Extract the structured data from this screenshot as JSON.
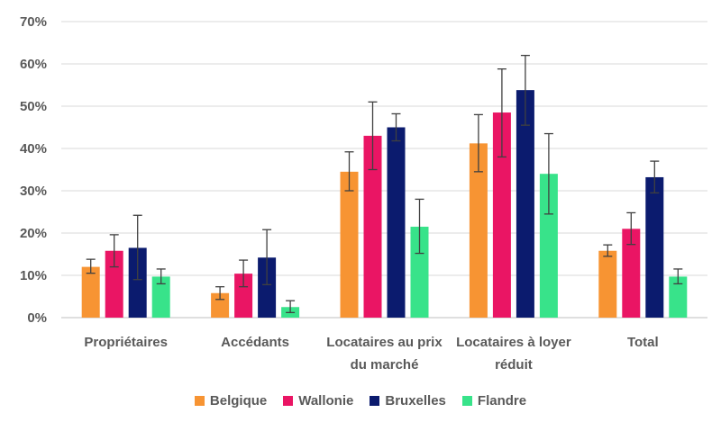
{
  "chart_data": {
    "type": "bar",
    "categories": [
      [
        "Propriétaires"
      ],
      [
        "Accédants"
      ],
      [
        "Locataires au prix",
        "du marché"
      ],
      [
        "Locataires à loyer",
        "réduit"
      ],
      [
        "Total"
      ]
    ],
    "ylim": [
      0,
      70
    ],
    "yticks": [
      "0%",
      "10%",
      "20%",
      "30%",
      "40%",
      "50%",
      "60%",
      "70%"
    ],
    "grid": true,
    "legend_position": "bottom",
    "series": [
      {
        "name": "Belgique",
        "color": "#F79433",
        "values": [
          12,
          5.8,
          34.5,
          41.2,
          15.8
        ],
        "err_low": [
          10.5,
          4.3,
          30,
          34.5,
          14.5
        ],
        "err_high": [
          13.8,
          7.3,
          39.2,
          48,
          17.2
        ]
      },
      {
        "name": "Wallonie",
        "color": "#EA1564",
        "values": [
          15.8,
          10.4,
          43,
          48.5,
          21
        ],
        "err_low": [
          12,
          7.3,
          35,
          38,
          17.3
        ],
        "err_high": [
          19.6,
          13.6,
          51,
          58.8,
          24.8
        ]
      },
      {
        "name": "Bruxelles",
        "color": "#0B1B6E",
        "values": [
          16.5,
          14.2,
          45,
          53.8,
          33.2
        ],
        "err_low": [
          9,
          7.8,
          41.8,
          45.5,
          29.5
        ],
        "err_high": [
          24.2,
          20.8,
          48.2,
          62,
          37
        ]
      },
      {
        "name": "Flandre",
        "color": "#38E38A",
        "values": [
          9.7,
          2.5,
          21.5,
          34,
          9.7
        ],
        "err_low": [
          8,
          1.2,
          15.2,
          24.5,
          8
        ],
        "err_high": [
          11.5,
          4,
          28,
          43.5,
          11.5
        ]
      }
    ]
  }
}
